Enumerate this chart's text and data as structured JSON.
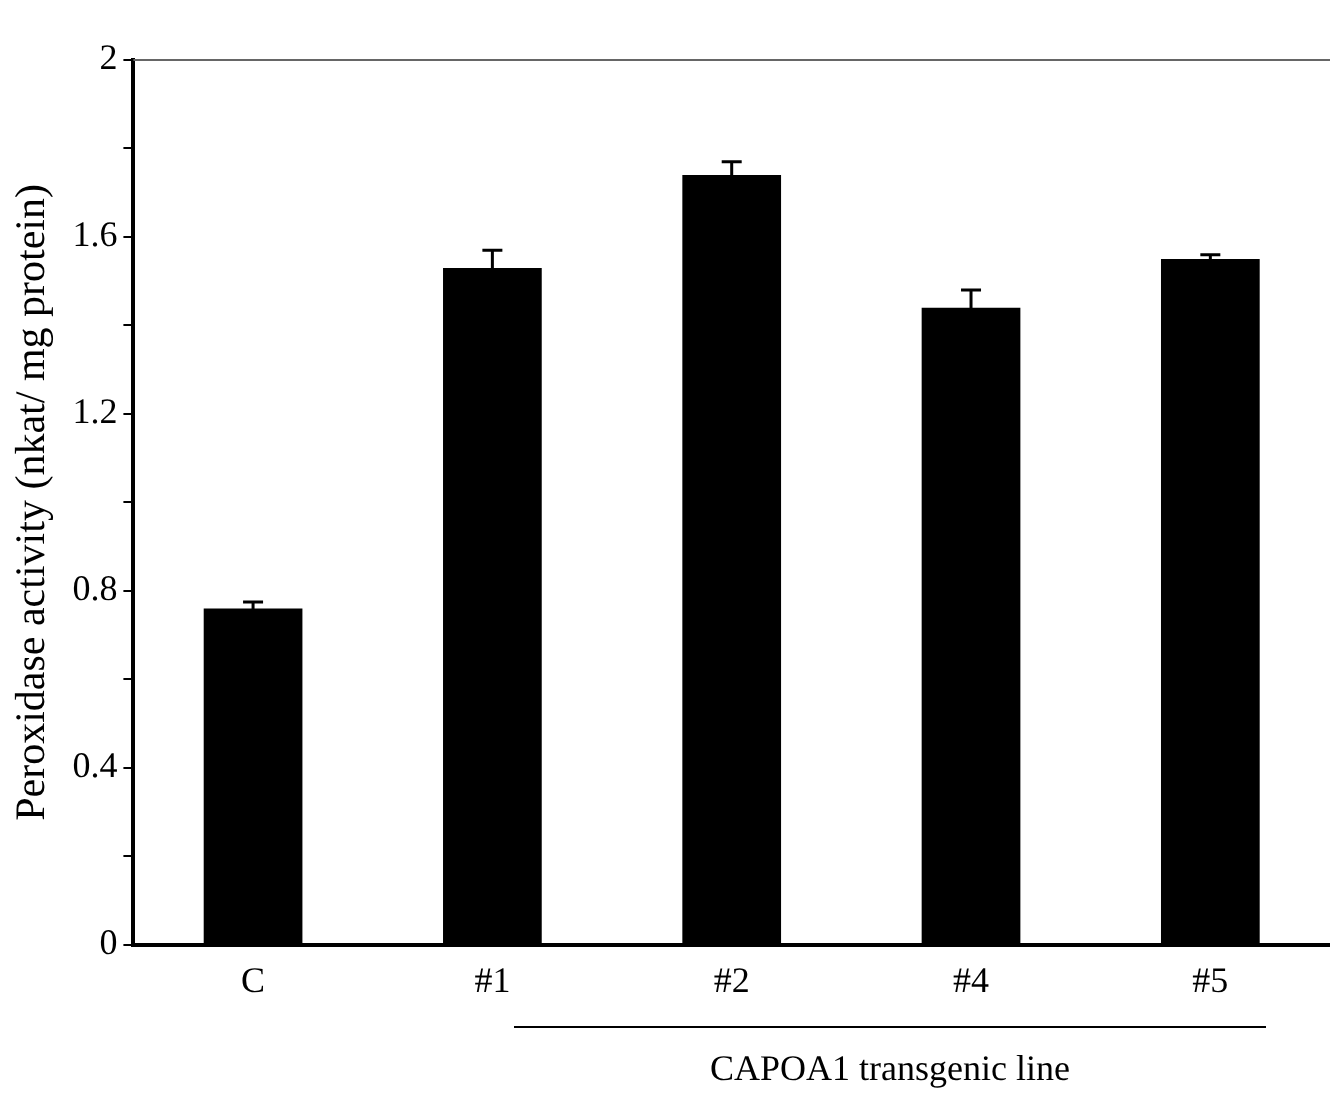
{
  "chart_data": {
    "type": "bar",
    "ylabel": "Peroxidase activity (nkat/ mg protein)",
    "xlabel": "CAPOA1 transgenic line",
    "categories": [
      "C",
      "#1",
      "#2",
      "#4",
      "#5"
    ],
    "values": [
      0.76,
      1.53,
      1.74,
      1.44,
      1.55
    ],
    "errors": [
      0.015,
      0.04,
      0.03,
      0.04,
      0.01
    ],
    "color": "#000000",
    "ylim": [
      0,
      2
    ],
    "yticks": [
      0,
      {
        "value": 0.2,
        "label": null
      },
      0.4,
      {
        "value": 0.6,
        "label": null
      },
      0.8,
      {
        "value": 1.0,
        "label": null
      },
      1.2,
      {
        "value": 1.4,
        "label": null
      },
      1.6,
      {
        "value": 1.8,
        "label": null
      },
      2
    ],
    "grid": false,
    "legend": false
  }
}
